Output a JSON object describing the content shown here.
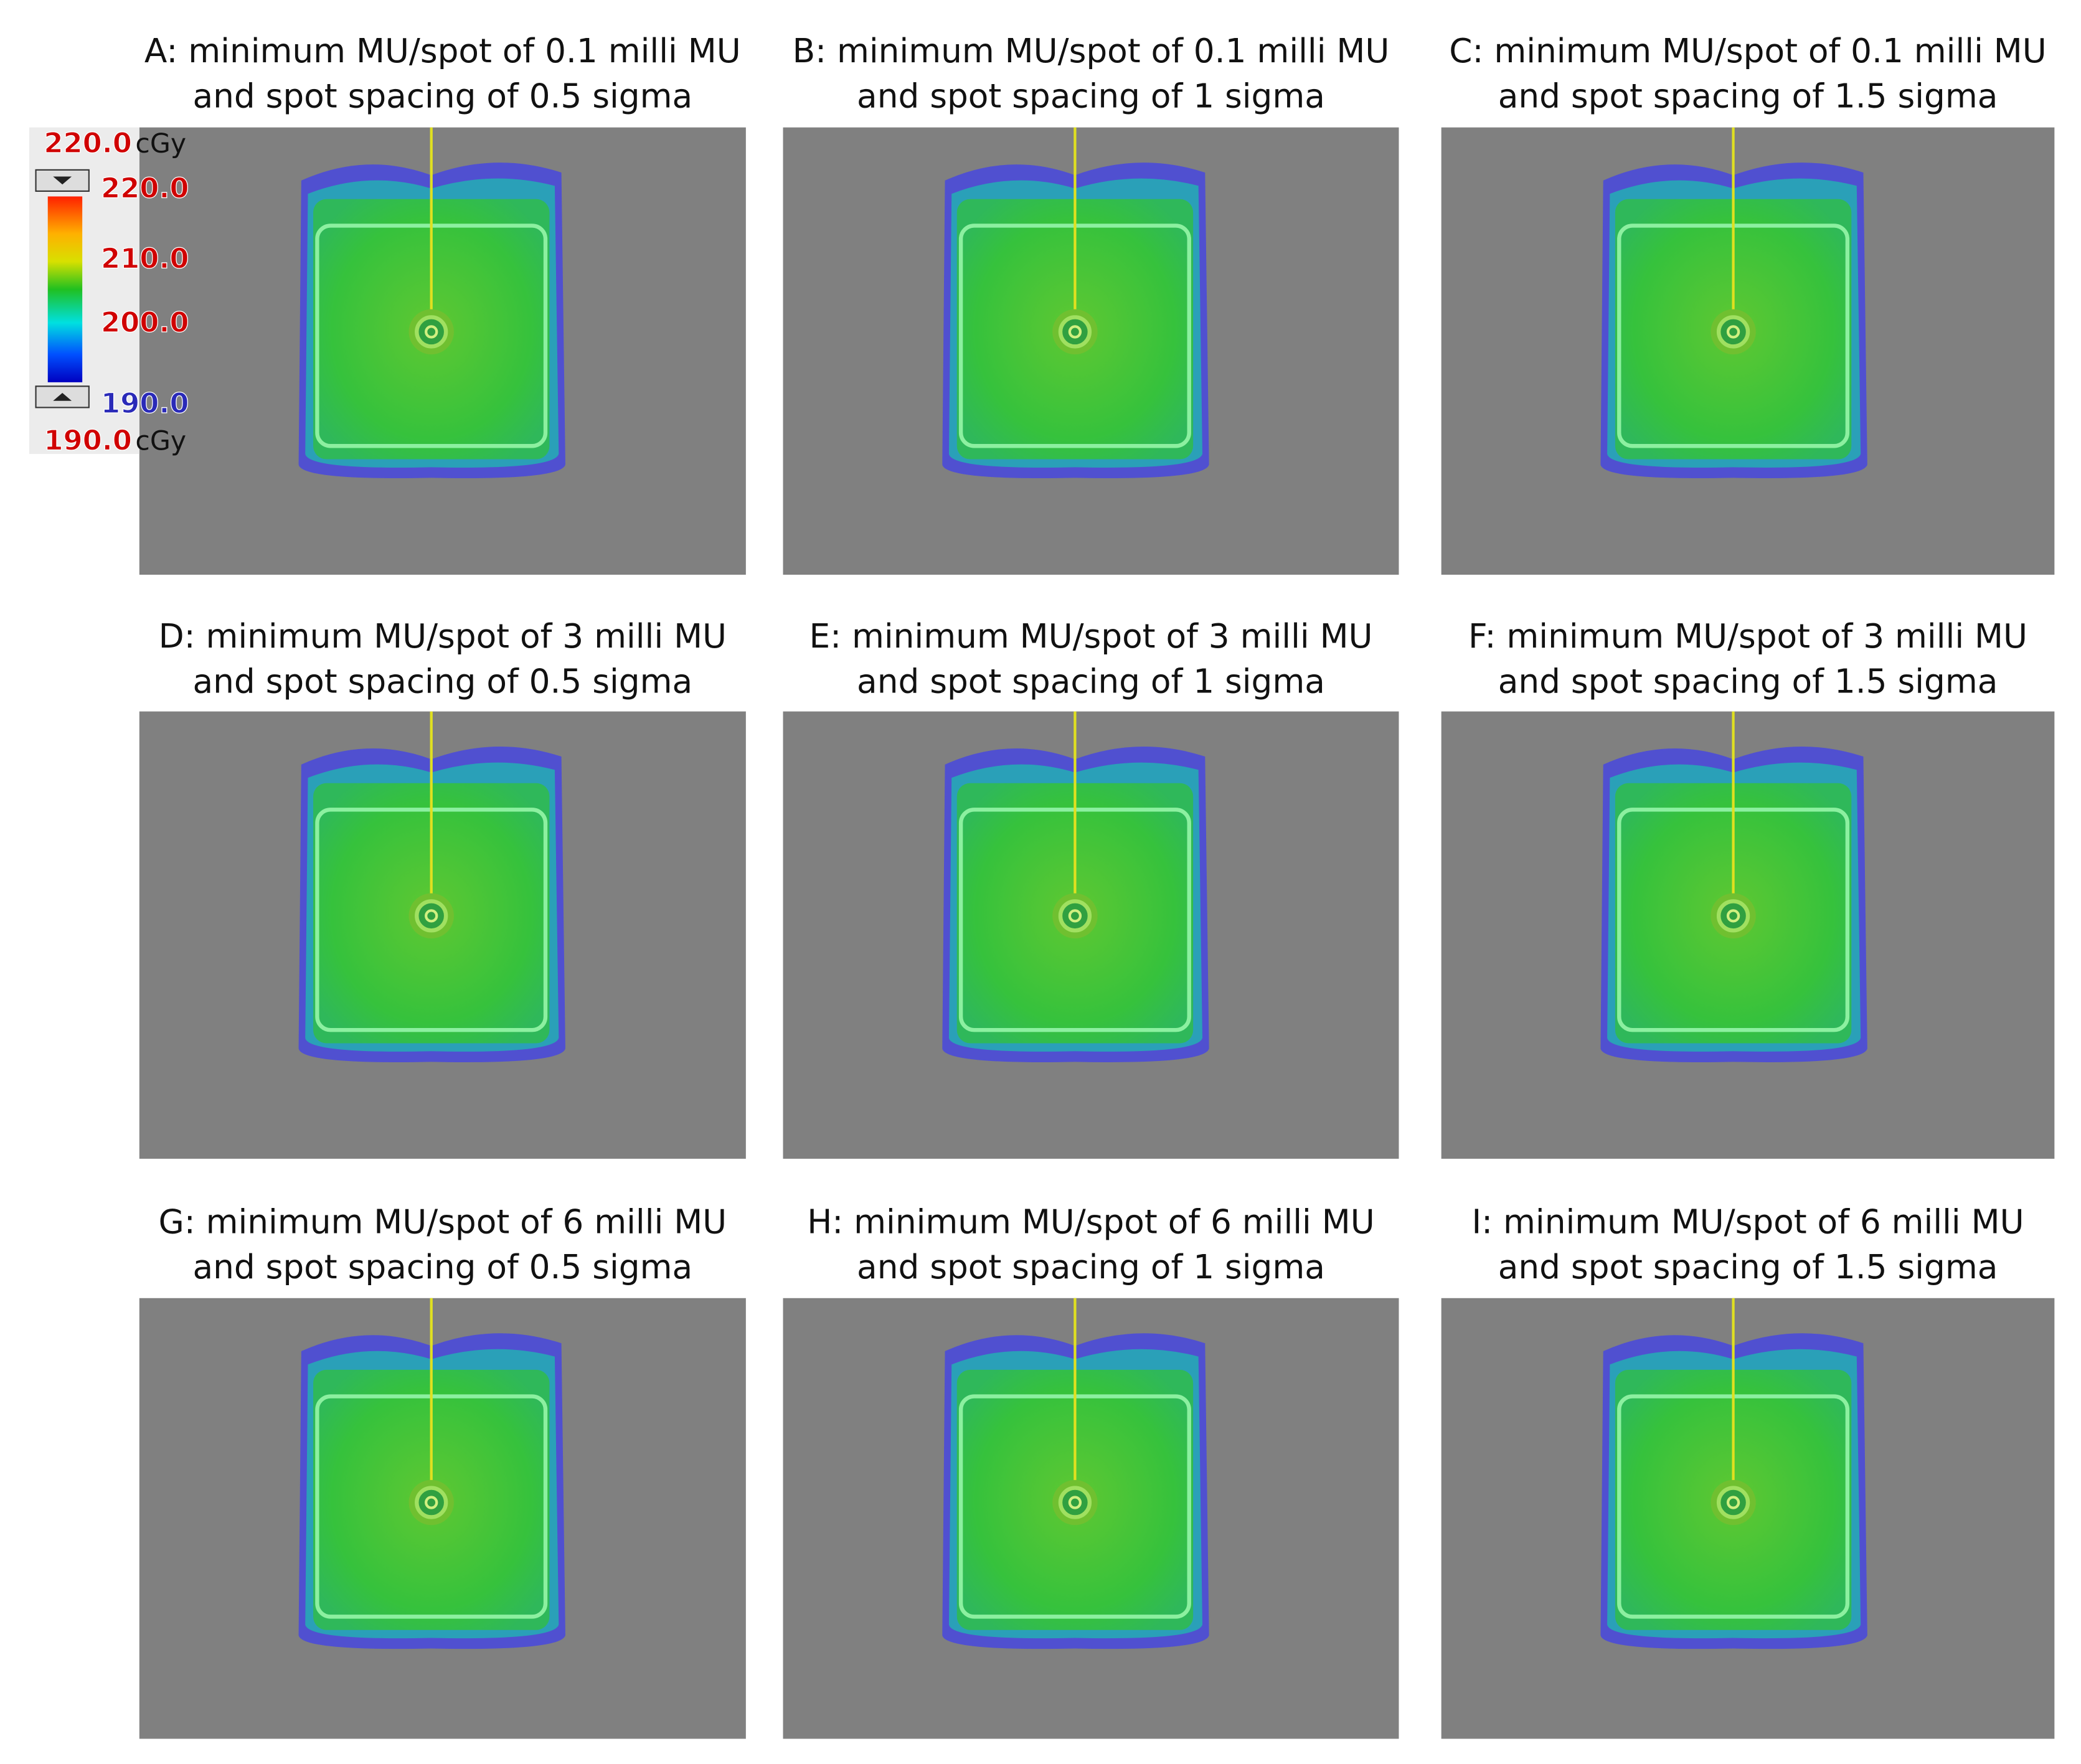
{
  "legend": {
    "top_value": "220.0",
    "top_unit": "cGy",
    "scale_labels": [
      "220.0",
      "210.0",
      "200.0",
      "190.0"
    ],
    "bottom_value": "190.0",
    "bottom_unit": "cGy"
  },
  "panels": [
    {
      "title": [
        "A: minimum MU/spot of 0.1 milli MU",
        "and spot spacing of 0.5 sigma"
      ]
    },
    {
      "title": [
        "B: minimum MU/spot of 0.1 milli MU",
        "and spot spacing of 1 sigma"
      ]
    },
    {
      "title": [
        "C: minimum MU/spot of 0.1 milli MU",
        "and spot spacing of 1.5 sigma"
      ]
    },
    {
      "title": [
        "D: minimum MU/spot of 3 milli MU",
        "and spot spacing of 0.5 sigma"
      ]
    },
    {
      "title": [
        "E: minimum MU/spot of 3 milli MU",
        "and spot spacing of 1 sigma"
      ]
    },
    {
      "title": [
        "F: minimum MU/spot of 3 milli MU",
        "and spot spacing of 1.5 sigma"
      ]
    },
    {
      "title": [
        "G: minimum MU/spot of 6 milli MU",
        "and spot spacing of 0.5 sigma"
      ]
    },
    {
      "title": [
        "H: minimum MU/spot of 6 milli MU",
        "and spot spacing of 1 sigma"
      ]
    },
    {
      "title": [
        "I: minimum MU/spot of 6 milli MU",
        "and spot spacing of 1.5 sigma"
      ]
    }
  ]
}
